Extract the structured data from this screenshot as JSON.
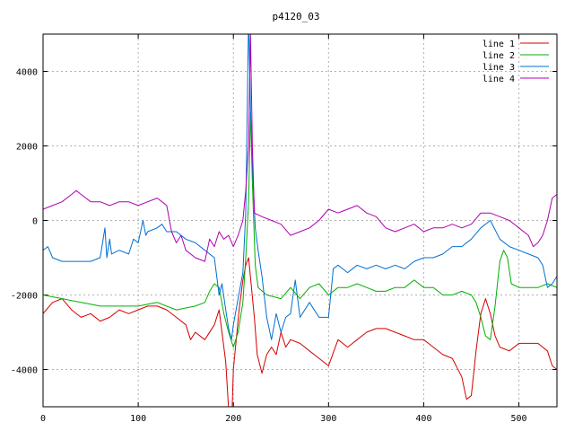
{
  "chart_data": {
    "type": "line",
    "title": "p4120_03",
    "xlabel": "",
    "ylabel": "",
    "xlim": [
      0,
      540
    ],
    "ylim": [
      -5000,
      5000
    ],
    "x_ticks": [
      0,
      100,
      200,
      300,
      400,
      500
    ],
    "y_ticks": [
      -4000,
      -2000,
      0,
      2000,
      4000
    ],
    "grid": true,
    "legend_position": "top-right",
    "series": [
      {
        "name": "line 1",
        "color": "#d40000",
        "points": [
          [
            0,
            -2500
          ],
          [
            10,
            -2200
          ],
          [
            20,
            -2100
          ],
          [
            30,
            -2400
          ],
          [
            40,
            -2600
          ],
          [
            50,
            -2500
          ],
          [
            60,
            -2700
          ],
          [
            70,
            -2600
          ],
          [
            80,
            -2400
          ],
          [
            90,
            -2500
          ],
          [
            100,
            -2400
          ],
          [
            110,
            -2300
          ],
          [
            120,
            -2300
          ],
          [
            130,
            -2400
          ],
          [
            140,
            -2600
          ],
          [
            150,
            -2800
          ],
          [
            155,
            -3200
          ],
          [
            160,
            -3000
          ],
          [
            170,
            -3200
          ],
          [
            180,
            -2800
          ],
          [
            185,
            -2400
          ],
          [
            188,
            -3000
          ],
          [
            192,
            -3800
          ],
          [
            196,
            -5500
          ],
          [
            198,
            -5600
          ],
          [
            200,
            -4000
          ],
          [
            203,
            -3200
          ],
          [
            206,
            -2400
          ],
          [
            210,
            -1600
          ],
          [
            213,
            -1200
          ],
          [
            216,
            -1000
          ],
          [
            219,
            -1800
          ],
          [
            222,
            -2600
          ],
          [
            225,
            -3600
          ],
          [
            230,
            -4100
          ],
          [
            235,
            -3600
          ],
          [
            240,
            -3400
          ],
          [
            245,
            -3600
          ],
          [
            250,
            -3000
          ],
          [
            255,
            -3400
          ],
          [
            260,
            -3200
          ],
          [
            270,
            -3300
          ],
          [
            280,
            -3500
          ],
          [
            290,
            -3700
          ],
          [
            300,
            -3900
          ],
          [
            310,
            -3200
          ],
          [
            320,
            -3400
          ],
          [
            330,
            -3200
          ],
          [
            340,
            -3000
          ],
          [
            350,
            -2900
          ],
          [
            360,
            -2900
          ],
          [
            370,
            -3000
          ],
          [
            380,
            -3100
          ],
          [
            390,
            -3200
          ],
          [
            400,
            -3200
          ],
          [
            410,
            -3400
          ],
          [
            420,
            -3600
          ],
          [
            430,
            -3700
          ],
          [
            440,
            -4200
          ],
          [
            445,
            -4800
          ],
          [
            450,
            -4700
          ],
          [
            455,
            -3500
          ],
          [
            460,
            -2500
          ],
          [
            465,
            -2100
          ],
          [
            470,
            -2500
          ],
          [
            475,
            -3100
          ],
          [
            480,
            -3400
          ],
          [
            490,
            -3500
          ],
          [
            500,
            -3300
          ],
          [
            510,
            -3300
          ],
          [
            520,
            -3300
          ],
          [
            530,
            -3500
          ],
          [
            535,
            -3900
          ],
          [
            540,
            -4000
          ]
        ]
      },
      {
        "name": "line 2",
        "color": "#00b000",
        "points": [
          [
            0,
            -2000
          ],
          [
            20,
            -2100
          ],
          [
            40,
            -2200
          ],
          [
            60,
            -2300
          ],
          [
            80,
            -2300
          ],
          [
            100,
            -2300
          ],
          [
            120,
            -2200
          ],
          [
            140,
            -2400
          ],
          [
            160,
            -2300
          ],
          [
            170,
            -2200
          ],
          [
            175,
            -1900
          ],
          [
            180,
            -1700
          ],
          [
            185,
            -1800
          ],
          [
            190,
            -2500
          ],
          [
            195,
            -3000
          ],
          [
            200,
            -3400
          ],
          [
            205,
            -3000
          ],
          [
            210,
            -2200
          ],
          [
            213,
            -1000
          ],
          [
            216,
            500
          ],
          [
            218,
            2900
          ],
          [
            220,
            1000
          ],
          [
            223,
            -1200
          ],
          [
            226,
            -1800
          ],
          [
            235,
            -2000
          ],
          [
            250,
            -2100
          ],
          [
            260,
            -1800
          ],
          [
            270,
            -2100
          ],
          [
            280,
            -1800
          ],
          [
            290,
            -1700
          ],
          [
            300,
            -2000
          ],
          [
            310,
            -1800
          ],
          [
            320,
            -1800
          ],
          [
            330,
            -1700
          ],
          [
            340,
            -1800
          ],
          [
            350,
            -1900
          ],
          [
            360,
            -1900
          ],
          [
            370,
            -1800
          ],
          [
            380,
            -1800
          ],
          [
            390,
            -1600
          ],
          [
            400,
            -1800
          ],
          [
            410,
            -1800
          ],
          [
            420,
            -2000
          ],
          [
            430,
            -2000
          ],
          [
            440,
            -1900
          ],
          [
            450,
            -2000
          ],
          [
            455,
            -2200
          ],
          [
            460,
            -2600
          ],
          [
            465,
            -3100
          ],
          [
            470,
            -3200
          ],
          [
            475,
            -2300
          ],
          [
            480,
            -1100
          ],
          [
            484,
            -800
          ],
          [
            488,
            -1000
          ],
          [
            492,
            -1700
          ],
          [
            500,
            -1800
          ],
          [
            510,
            -1800
          ],
          [
            520,
            -1800
          ],
          [
            530,
            -1700
          ],
          [
            540,
            -1800
          ]
        ]
      },
      {
        "name": "line 3",
        "color": "#0070d0",
        "points": [
          [
            0,
            -800
          ],
          [
            5,
            -700
          ],
          [
            10,
            -1000
          ],
          [
            20,
            -1100
          ],
          [
            30,
            -1100
          ],
          [
            40,
            -1100
          ],
          [
            50,
            -1100
          ],
          [
            60,
            -1000
          ],
          [
            65,
            -200
          ],
          [
            67,
            -1000
          ],
          [
            70,
            -500
          ],
          [
            72,
            -900
          ],
          [
            80,
            -800
          ],
          [
            90,
            -900
          ],
          [
            95,
            -500
          ],
          [
            100,
            -600
          ],
          [
            105,
            0
          ],
          [
            108,
            -400
          ],
          [
            110,
            -300
          ],
          [
            120,
            -200
          ],
          [
            125,
            -100
          ],
          [
            130,
            -300
          ],
          [
            140,
            -300
          ],
          [
            150,
            -500
          ],
          [
            160,
            -600
          ],
          [
            170,
            -800
          ],
          [
            180,
            -1000
          ],
          [
            185,
            -2000
          ],
          [
            188,
            -1700
          ],
          [
            192,
            -2400
          ],
          [
            195,
            -2900
          ],
          [
            198,
            -3200
          ],
          [
            200,
            -2800
          ],
          [
            205,
            -2100
          ],
          [
            210,
            -1400
          ],
          [
            213,
            200
          ],
          [
            216,
            5500
          ],
          [
            218,
            3000
          ],
          [
            220,
            1500
          ],
          [
            223,
            -200
          ],
          [
            226,
            -800
          ],
          [
            230,
            -1500
          ],
          [
            235,
            -2600
          ],
          [
            240,
            -3200
          ],
          [
            245,
            -2500
          ],
          [
            250,
            -3000
          ],
          [
            255,
            -2600
          ],
          [
            260,
            -2500
          ],
          [
            265,
            -1600
          ],
          [
            270,
            -2600
          ],
          [
            280,
            -2200
          ],
          [
            290,
            -2600
          ],
          [
            300,
            -2600
          ],
          [
            305,
            -1300
          ],
          [
            310,
            -1200
          ],
          [
            320,
            -1400
          ],
          [
            330,
            -1200
          ],
          [
            340,
            -1300
          ],
          [
            350,
            -1200
          ],
          [
            360,
            -1300
          ],
          [
            370,
            -1200
          ],
          [
            380,
            -1300
          ],
          [
            390,
            -1100
          ],
          [
            400,
            -1000
          ],
          [
            410,
            -1000
          ],
          [
            420,
            -900
          ],
          [
            430,
            -700
          ],
          [
            440,
            -700
          ],
          [
            450,
            -500
          ],
          [
            460,
            -200
          ],
          [
            470,
            0
          ],
          [
            480,
            -500
          ],
          [
            490,
            -700
          ],
          [
            500,
            -800
          ],
          [
            510,
            -900
          ],
          [
            520,
            -1000
          ],
          [
            525,
            -1200
          ],
          [
            530,
            -1800
          ],
          [
            535,
            -1700
          ],
          [
            540,
            -1500
          ]
        ]
      },
      {
        "name": "line 4",
        "color": "#b000b0",
        "points": [
          [
            0,
            300
          ],
          [
            10,
            400
          ],
          [
            20,
            500
          ],
          [
            30,
            700
          ],
          [
            35,
            800
          ],
          [
            40,
            700
          ],
          [
            50,
            500
          ],
          [
            60,
            500
          ],
          [
            70,
            400
          ],
          [
            80,
            500
          ],
          [
            90,
            500
          ],
          [
            100,
            400
          ],
          [
            110,
            500
          ],
          [
            120,
            600
          ],
          [
            125,
            500
          ],
          [
            130,
            400
          ],
          [
            135,
            -300
          ],
          [
            140,
            -600
          ],
          [
            145,
            -400
          ],
          [
            150,
            -800
          ],
          [
            160,
            -1000
          ],
          [
            170,
            -1100
          ],
          [
            175,
            -500
          ],
          [
            180,
            -700
          ],
          [
            185,
            -300
          ],
          [
            190,
            -500
          ],
          [
            195,
            -400
          ],
          [
            200,
            -700
          ],
          [
            205,
            -400
          ],
          [
            210,
            0
          ],
          [
            213,
            800
          ],
          [
            216,
            2000
          ],
          [
            218,
            5000
          ],
          [
            220,
            2000
          ],
          [
            222,
            200
          ],
          [
            230,
            100
          ],
          [
            240,
            0
          ],
          [
            250,
            -100
          ],
          [
            260,
            -400
          ],
          [
            270,
            -300
          ],
          [
            280,
            -200
          ],
          [
            290,
            0
          ],
          [
            300,
            300
          ],
          [
            310,
            200
          ],
          [
            320,
            300
          ],
          [
            330,
            400
          ],
          [
            340,
            200
          ],
          [
            350,
            100
          ],
          [
            360,
            -200
          ],
          [
            370,
            -300
          ],
          [
            380,
            -200
          ],
          [
            390,
            -100
          ],
          [
            400,
            -300
          ],
          [
            410,
            -200
          ],
          [
            420,
            -200
          ],
          [
            430,
            -100
          ],
          [
            440,
            -200
          ],
          [
            450,
            -100
          ],
          [
            460,
            200
          ],
          [
            470,
            200
          ],
          [
            480,
            100
          ],
          [
            490,
            0
          ],
          [
            500,
            -200
          ],
          [
            510,
            -400
          ],
          [
            515,
            -700
          ],
          [
            520,
            -600
          ],
          [
            525,
            -400
          ],
          [
            530,
            0
          ],
          [
            535,
            600
          ],
          [
            540,
            700
          ]
        ]
      }
    ]
  }
}
